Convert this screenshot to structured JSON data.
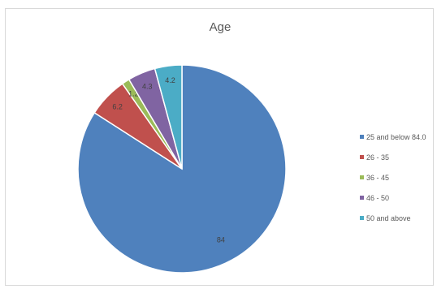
{
  "chart_data": {
    "type": "pie",
    "title": "Age",
    "categories": [
      "25 and below",
      "26 - 35",
      "36 - 45",
      "46 - 50",
      "50 and above"
    ],
    "values": [
      84.0,
      6.2,
      1.2,
      4.3,
      4.2
    ],
    "data_labels": [
      "84",
      "6.2",
      "1.2",
      "4.3",
      "4.2"
    ],
    "legend_labels": [
      "25 and below 84.0",
      "26 - 35",
      "36 - 45",
      "46 - 50",
      "50 and above"
    ],
    "colors": [
      "#4f81bd",
      "#c0504d",
      "#9bbb59",
      "#8064a2",
      "#4bacc6"
    ],
    "legend_position": "right",
    "start_angle_deg": 0,
    "direction": "clockwise"
  }
}
